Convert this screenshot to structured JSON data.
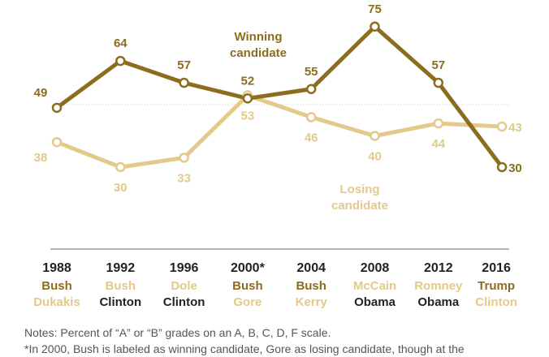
{
  "chart_data": {
    "type": "line",
    "x": [
      "1988",
      "1992",
      "1996",
      "2000*",
      "2004",
      "2008",
      "2012",
      "2016"
    ],
    "ylim": [
      20,
      80
    ],
    "series": [
      {
        "name": "Winning candidate",
        "color": "#8c6d1f",
        "values": [
          49,
          64,
          57,
          52,
          55,
          75,
          57,
          30
        ]
      },
      {
        "name": "Losing candidate",
        "color": "#e3c98a",
        "values": [
          38,
          30,
          33,
          53,
          46,
          40,
          44,
          43
        ]
      }
    ],
    "top_candidate": [
      "Bush",
      "Bush",
      "Dole",
      "Bush",
      "Bush",
      "McCain",
      "Romney",
      "Trump"
    ],
    "top_is_winner": [
      true,
      false,
      false,
      true,
      true,
      false,
      false,
      true
    ],
    "bottom_candidate": [
      "Dukakis",
      "Clinton",
      "Clinton",
      "Gore",
      "Kerry",
      "Obama",
      "Obama",
      "Clinton"
    ],
    "series_labels": {
      "winning": [
        "Winning",
        "candidate"
      ],
      "losing": [
        "Losing",
        "candidate"
      ]
    },
    "reference_value": 50,
    "colors": {
      "winning": "#8c6d1f",
      "losing": "#e3c98a",
      "axis": "#888888",
      "text": "#222222",
      "ref": "#cccccc"
    }
  },
  "notes": {
    "line1": "Notes: Percent of “A” or “B” grades on an A, B, C, D, F scale.",
    "line2": "*In 2000, Bush is labeled as winning candidate, Gore as losing candidate, though at the"
  }
}
